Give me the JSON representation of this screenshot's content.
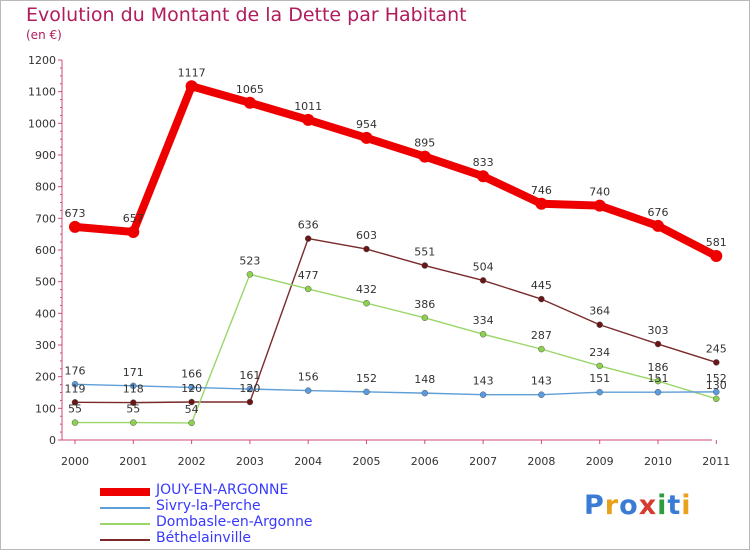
{
  "title": "Evolution du Montant de la Dette par Habitant",
  "subtitle": "(en €)",
  "logo": {
    "text": "Proxiti",
    "colors": [
      "#3a7bd5",
      "#e8a11a",
      "#3a7bd5",
      "#d63b2f",
      "#2e9d3f",
      "#3a7bd5",
      "#e8a11a"
    ]
  },
  "chart_data": {
    "type": "line",
    "title": "Evolution du Montant de la Dette par Habitant",
    "subtitle": "(en €)",
    "xlabel": "",
    "ylabel": "",
    "categories": [
      "2000",
      "2001",
      "2002",
      "2003",
      "2004",
      "2005",
      "2006",
      "2007",
      "2008",
      "2009",
      "2010",
      "2011"
    ],
    "ylim": [
      0,
      1200
    ],
    "yticks": [
      0,
      100,
      200,
      300,
      400,
      500,
      600,
      700,
      800,
      900,
      1000,
      1100,
      1200
    ],
    "grid": false,
    "legend_position": "bottom-left",
    "series": [
      {
        "name": "JOUY-EN-ARGONNE",
        "color": "#ee0000",
        "line_width": "thick",
        "values": [
          673,
          657,
          1117,
          1065,
          1011,
          954,
          895,
          833,
          746,
          740,
          676,
          581
        ],
        "labels": [
          "673",
          "657",
          "1117",
          "1065",
          "1011",
          "954",
          "895",
          "833",
          "746",
          "740",
          "676",
          "581"
        ]
      },
      {
        "name": "Sivry-la-Perche",
        "color": "#5f9fd8",
        "marker_color": "#5b9be0",
        "line_width": "thin",
        "values": [
          176,
          171,
          166,
          161,
          156,
          152,
          148,
          143,
          143,
          151,
          151,
          152
        ],
        "labels": [
          "176",
          "171",
          "166",
          "161",
          "156",
          "152",
          "148",
          "143",
          "143",
          "151",
          "151",
          "152"
        ]
      },
      {
        "name": "Dombasle-en-Argonne",
        "color": "#9ad66a",
        "marker_color": "#8ed14f",
        "line_width": "thin",
        "values": [
          55,
          55,
          54,
          523,
          477,
          432,
          386,
          334,
          287,
          234,
          186,
          130
        ],
        "labels": [
          "55",
          "55",
          "54",
          "523",
          "477",
          "432",
          "386",
          "334",
          "287",
          "234",
          "186",
          "130"
        ]
      },
      {
        "name": "Béthelainville",
        "color": "#7a2a2a",
        "marker_color": "#6a1616",
        "line_width": "thin",
        "values": [
          119,
          118,
          120,
          120,
          636,
          603,
          551,
          504,
          445,
          364,
          303,
          245
        ],
        "labels": [
          "119",
          "118",
          "120",
          "120",
          "636",
          "603",
          "551",
          "504",
          "445",
          "364",
          "303",
          "245"
        ]
      }
    ]
  }
}
